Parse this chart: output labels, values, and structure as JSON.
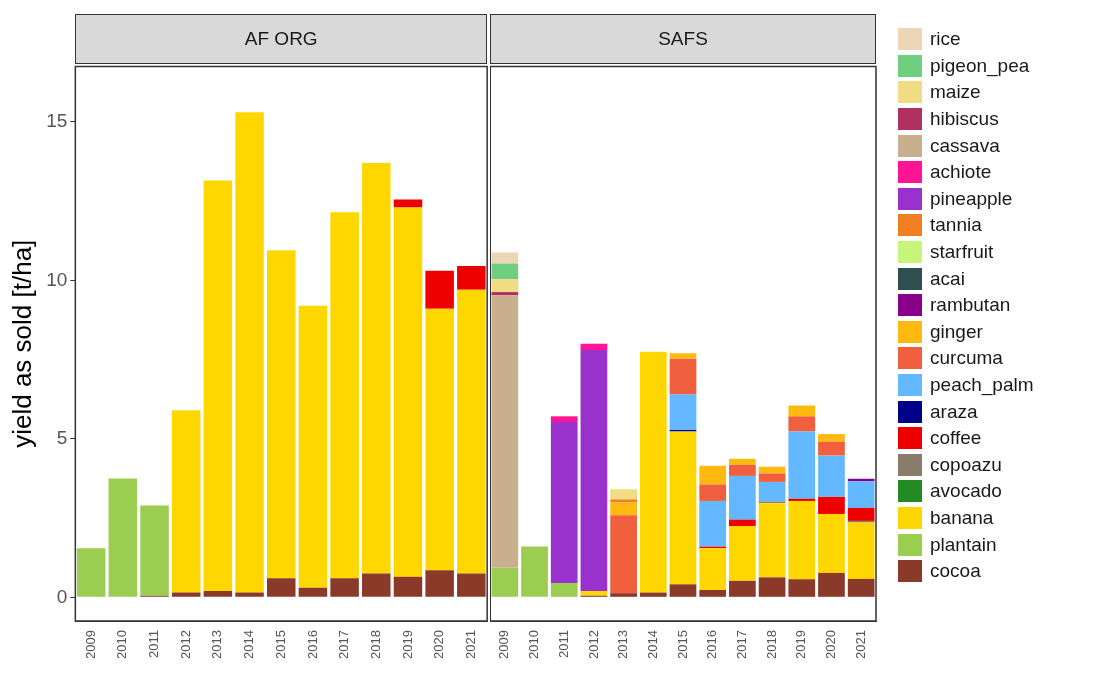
{
  "chart_data": [
    {
      "type": "bar",
      "title": "AF ORG",
      "ylabel": "yield as sold [t/ha]",
      "stacked": true,
      "grid": false,
      "legend": false,
      "categories": [
        "2009",
        "2010",
        "2011",
        "2012",
        "2013",
        "2014",
        "2015",
        "2016",
        "2017",
        "2018",
        "2019",
        "2020",
        "2021"
      ],
      "ylim": [
        -0.75,
        16.75
      ],
      "yticks": [
        0,
        5,
        10,
        15
      ],
      "series": [
        {
          "color": "#8b3a2a",
          "values": [
            null,
            null,
            0.05,
            0.15,
            0.2,
            0.15,
            0.6,
            0.3,
            0.6,
            0.75,
            0.65,
            0.85,
            0.75
          ]
        },
        {
          "color": "#9acd50",
          "values": [
            1.55,
            3.75,
            2.85,
            null,
            null,
            null,
            null,
            null,
            null,
            null,
            null,
            null,
            null
          ]
        },
        {
          "color": "#ffd700",
          "values": [
            null,
            null,
            null,
            5.75,
            12.95,
            15.15,
            10.35,
            8.9,
            11.55,
            12.95,
            11.65,
            8.25,
            8.95
          ]
        },
        {
          "color": "#ee0000",
          "values": [
            null,
            null,
            null,
            null,
            null,
            null,
            null,
            null,
            null,
            null,
            0.25,
            1.2,
            0.75
          ]
        }
      ]
    },
    {
      "type": "bar",
      "title": "SAFS",
      "stacked": true,
      "grid": false,
      "legend": "right",
      "tick_labels": "x",
      "categories": [
        "2009",
        "2010",
        "2011",
        "2012",
        "2013",
        "2014",
        "2015",
        "2016",
        "2017",
        "2018",
        "2019",
        "2020",
        "2021"
      ],
      "ylim": [
        -0.75,
        16.75
      ],
      "yticks": [
        0,
        5,
        10,
        15
      ],
      "series": [
        {
          "name": "cocoa",
          "color": "#8b3a2a",
          "values": [
            null,
            null,
            null,
            0.05,
            0.13,
            0.15,
            0.41,
            0.23,
            0.52,
            0.63,
            0.57,
            0.77,
            0.58
          ]
        },
        {
          "name": "plantain",
          "color": "#9acd50",
          "values": [
            0.93,
            1.6,
            0.45,
            null,
            null,
            null,
            null,
            null,
            null,
            null,
            null,
            null,
            null
          ]
        },
        {
          "name": "banana",
          "color": "#ffd700",
          "values": [
            null,
            null,
            null,
            0.15,
            null,
            7.6,
            4.82,
            1.32,
            1.73,
            2.34,
            2.47,
            1.86,
            1.78
          ]
        },
        {
          "name": "avocado",
          "color": "#228b22",
          "values": [
            null,
            null,
            null,
            null,
            null,
            null,
            null,
            null,
            null,
            null,
            null,
            null,
            null
          ]
        },
        {
          "name": "copoazu",
          "color": "#8b7d6b",
          "values": [
            null,
            null,
            null,
            null,
            null,
            null,
            null,
            null,
            null,
            0.05,
            null,
            null,
            0.05
          ]
        },
        {
          "name": "coffee",
          "color": "#ee0000",
          "values": [
            null,
            null,
            null,
            null,
            null,
            null,
            null,
            0.05,
            0.2,
            null,
            0.07,
            0.54,
            0.41
          ]
        },
        {
          "name": "araza",
          "color": "#00008b",
          "values": [
            null,
            null,
            null,
            null,
            null,
            null,
            0.05,
            null,
            null,
            null,
            null,
            null,
            null
          ]
        },
        {
          "name": "peach_palm",
          "color": "#63b8ff",
          "values": [
            null,
            null,
            null,
            null,
            null,
            null,
            1.12,
            1.44,
            1.38,
            0.62,
            2.12,
            1.3,
            0.84
          ]
        },
        {
          "name": "curcuma",
          "color": "#f0603e",
          "values": [
            null,
            null,
            null,
            null,
            2.46,
            null,
            1.13,
            0.52,
            0.35,
            0.27,
            0.48,
            0.44,
            null
          ]
        },
        {
          "name": "ginger",
          "color": "#ffb90f",
          "values": [
            null,
            null,
            null,
            null,
            0.4,
            null,
            0.17,
            0.59,
            0.19,
            0.21,
            0.34,
            0.24,
            null
          ]
        },
        {
          "name": "rambutan",
          "color": "#8b008b",
          "values": [
            null,
            null,
            null,
            null,
            null,
            null,
            null,
            null,
            null,
            null,
            null,
            null,
            0.08
          ]
        },
        {
          "name": "acai",
          "color": "#2f4f4f",
          "values": [
            null,
            null,
            null,
            null,
            null,
            null,
            null,
            null,
            null,
            null,
            null,
            null,
            null
          ]
        },
        {
          "name": "starfruit",
          "color": "#c6f57a",
          "values": [
            null,
            null,
            null,
            null,
            null,
            null,
            null,
            null,
            null,
            null,
            null,
            null,
            null
          ]
        },
        {
          "name": "tannia",
          "color": "#f07f24",
          "values": [
            null,
            null,
            null,
            null,
            0.1,
            null,
            null,
            null,
            null,
            null,
            null,
            null,
            null
          ]
        },
        {
          "name": "pineapple",
          "color": "#9932cc",
          "values": [
            null,
            null,
            5.08,
            7.6,
            null,
            null,
            null,
            null,
            null,
            null,
            null,
            null,
            null
          ]
        },
        {
          "name": "achiote",
          "color": "#ff1493",
          "values": [
            null,
            null,
            0.18,
            0.2,
            null,
            null,
            null,
            null,
            null,
            null,
            null,
            null,
            null
          ]
        },
        {
          "name": "cassava",
          "color": "#c8b08e",
          "values": [
            8.6,
            null,
            null,
            null,
            null,
            null,
            null,
            null,
            null,
            null,
            null,
            null,
            null
          ]
        },
        {
          "name": "hibiscus",
          "color": "#b03060",
          "values": [
            0.1,
            null,
            null,
            null,
            null,
            null,
            null,
            null,
            null,
            null,
            null,
            null,
            null
          ]
        },
        {
          "name": "maize",
          "color": "#f0dc82",
          "values": [
            0.4,
            null,
            null,
            null,
            0.32,
            null,
            null,
            null,
            null,
            null,
            null,
            null,
            null
          ]
        },
        {
          "name": "pigeon_pea",
          "color": "#6fcf7f",
          "values": [
            0.5,
            null,
            null,
            null,
            null,
            null,
            null,
            null,
            null,
            null,
            null,
            null,
            null
          ]
        },
        {
          "name": "rice",
          "color": "#ecd6b5",
          "values": [
            0.35,
            null,
            null,
            null,
            null,
            null,
            null,
            null,
            null,
            null,
            null,
            null,
            null
          ]
        }
      ]
    }
  ]
}
